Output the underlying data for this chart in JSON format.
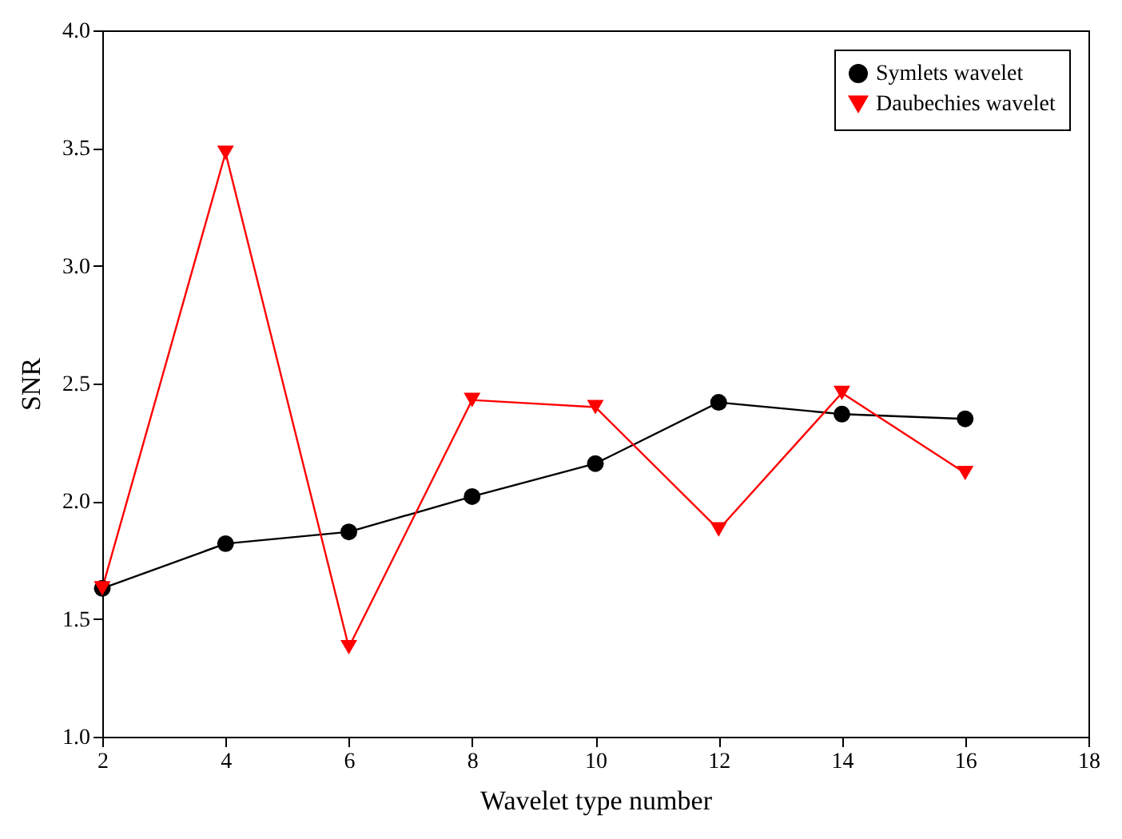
{
  "chart_data": {
    "type": "line",
    "xlabel": "Wavelet type number",
    "ylabel": "SNR",
    "x": [
      2,
      4,
      6,
      8,
      10,
      12,
      14,
      16
    ],
    "series": [
      {
        "name": "Symlets wavelet",
        "color": "#000000",
        "marker": "circle",
        "values": [
          1.63,
          1.82,
          1.87,
          2.02,
          2.16,
          2.42,
          2.37,
          2.35
        ]
      },
      {
        "name": "Daubechies wavelet",
        "color": "#ff0000",
        "marker": "triangle-down",
        "values": [
          1.63,
          3.48,
          1.38,
          2.43,
          2.4,
          1.88,
          2.46,
          2.12
        ]
      }
    ],
    "xlim": [
      2,
      18
    ],
    "xticks": [
      2,
      4,
      6,
      8,
      10,
      12,
      14,
      16,
      18
    ],
    "ylim": [
      1.0,
      4.0
    ],
    "yticks": [
      {
        "value": 1.0,
        "label": "1.0"
      },
      {
        "value": 1.5,
        "label": "1.5"
      },
      {
        "value": 2.0,
        "label": "2.0"
      },
      {
        "value": 2.5,
        "label": "2.5"
      },
      {
        "value": 3.0,
        "label": "3.0"
      },
      {
        "value": 3.5,
        "label": "3.5"
      },
      {
        "value": 4.0,
        "label": "4.0"
      }
    ],
    "grid": false,
    "legend": "top right",
    "line_style": "solid"
  }
}
